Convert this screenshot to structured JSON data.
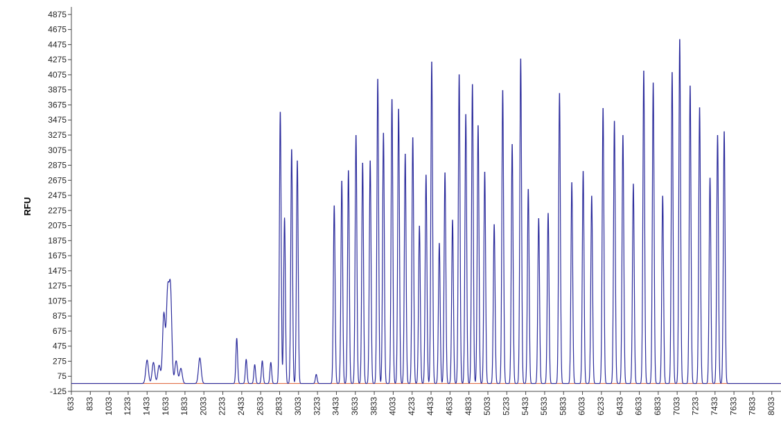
{
  "chart_data": {
    "type": "line",
    "title": "",
    "xlabel": "",
    "ylabel": "RFU",
    "xlim": [
      633,
      8130
    ],
    "ylim": [
      -125,
      4975
    ],
    "grid": false,
    "colors": {
      "trace": "#2b2b9c",
      "baseline": "#e0704a",
      "axis": "#444444"
    },
    "x_ticks": [
      633,
      833,
      1033,
      1233,
      1433,
      1633,
      1833,
      2033,
      2233,
      2433,
      2633,
      2833,
      3033,
      3233,
      3433,
      3633,
      3833,
      4033,
      4233,
      4433,
      4633,
      4833,
      5033,
      5233,
      5433,
      5633,
      5833,
      6033,
      6233,
      6433,
      6633,
      6833,
      7033,
      7233,
      7433,
      7633,
      7833,
      8033
    ],
    "y_ticks": [
      -125,
      75,
      275,
      475,
      675,
      875,
      1075,
      1275,
      1475,
      1675,
      1875,
      2075,
      2275,
      2475,
      2675,
      2875,
      3075,
      3275,
      3475,
      3675,
      3875,
      4075,
      4275,
      4475,
      4675,
      4875
    ],
    "baseline_value": -20,
    "series": [
      {
        "values_format": "peaks [x, RFU]",
        "peaks": [
          [
            1433,
            290
          ],
          [
            1500,
            260
          ],
          [
            1560,
            220
          ],
          [
            1610,
            900
          ],
          [
            1650,
            1150
          ],
          [
            1680,
            1200
          ],
          [
            1740,
            280
          ],
          [
            1790,
            180
          ],
          [
            1990,
            320
          ],
          [
            2380,
            580
          ],
          [
            2480,
            300
          ],
          [
            2570,
            230
          ],
          [
            2650,
            280
          ],
          [
            2740,
            260
          ],
          [
            2840,
            3600
          ],
          [
            2885,
            2180
          ],
          [
            2960,
            3100
          ],
          [
            3020,
            2950
          ],
          [
            3220,
            100
          ],
          [
            3410,
            2350
          ],
          [
            3490,
            2680
          ],
          [
            3560,
            2820
          ],
          [
            3640,
            3290
          ],
          [
            3710,
            2920
          ],
          [
            3790,
            2950
          ],
          [
            3870,
            4040
          ],
          [
            3930,
            3320
          ],
          [
            4020,
            3770
          ],
          [
            4090,
            3640
          ],
          [
            4160,
            3040
          ],
          [
            4240,
            3260
          ],
          [
            4310,
            2080
          ],
          [
            4380,
            2760
          ],
          [
            4440,
            4270
          ],
          [
            4520,
            1850
          ],
          [
            4580,
            2790
          ],
          [
            4660,
            2160
          ],
          [
            4730,
            4100
          ],
          [
            4800,
            3570
          ],
          [
            4870,
            3970
          ],
          [
            4930,
            3420
          ],
          [
            5000,
            2800
          ],
          [
            5100,
            2100
          ],
          [
            5190,
            3890
          ],
          [
            5290,
            3170
          ],
          [
            5380,
            4310
          ],
          [
            5460,
            2570
          ],
          [
            5570,
            2180
          ],
          [
            5670,
            2250
          ],
          [
            5790,
            3850
          ],
          [
            5920,
            2660
          ],
          [
            6040,
            2810
          ],
          [
            6130,
            2480
          ],
          [
            6250,
            3650
          ],
          [
            6370,
            3480
          ],
          [
            6460,
            3290
          ],
          [
            6570,
            2640
          ],
          [
            6680,
            4150
          ],
          [
            6780,
            3990
          ],
          [
            6880,
            2480
          ],
          [
            6980,
            4130
          ],
          [
            7060,
            4570
          ],
          [
            7170,
            3950
          ],
          [
            7270,
            3660
          ],
          [
            7380,
            2720
          ],
          [
            7460,
            3290
          ],
          [
            7530,
            3340
          ]
        ]
      }
    ]
  }
}
